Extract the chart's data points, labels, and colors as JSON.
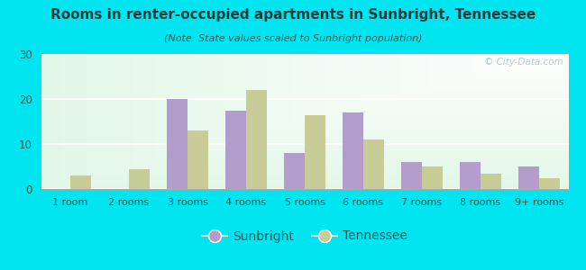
{
  "title": "Rooms in renter-occupied apartments in Sunbright, Tennessee",
  "subtitle": "(Note: State values scaled to Sunbright population)",
  "categories": [
    "1 room",
    "2 rooms",
    "3 rooms",
    "4 rooms",
    "5 rooms",
    "6 rooms",
    "7 rooms",
    "8 rooms",
    "9+ rooms"
  ],
  "sunbright_values": [
    0,
    0,
    20,
    17.5,
    8,
    17,
    6,
    6,
    5
  ],
  "tennessee_values": [
    3,
    4.5,
    13,
    22,
    16.5,
    11,
    5,
    3.5,
    2.5
  ],
  "sunbright_color": "#b39dcc",
  "tennessee_color": "#c8cc96",
  "background_outer": "#00e5f0",
  "title_color": "#1a3a3a",
  "subtitle_color": "#2a5a5a",
  "tick_color": "#006060",
  "ylim": [
    0,
    30
  ],
  "yticks": [
    0,
    10,
    20,
    30
  ],
  "bar_width": 0.35,
  "figsize": [
    6.5,
    3.0
  ],
  "dpi": 100,
  "watermark": "© City-Data.com"
}
